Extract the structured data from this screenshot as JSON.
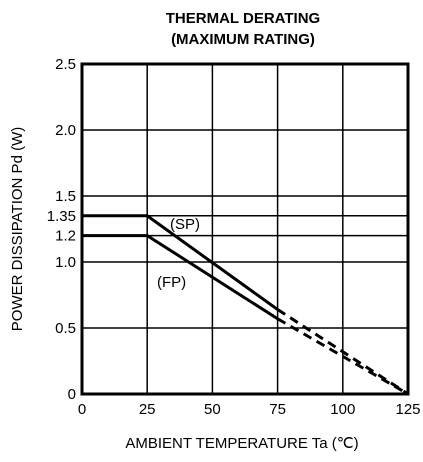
{
  "chart_data": {
    "type": "line",
    "title": "THERMAL DERATING",
    "subtitle": "(MAXIMUM RATING)",
    "xlabel": "AMBIENT TEMPERATURE Ta (℃)",
    "ylabel": "POWER DISSIPATION Pd (W)",
    "xlim": [
      0,
      125
    ],
    "ylim": [
      0,
      2.5
    ],
    "grid": true,
    "x_ticks": [
      "0",
      "25",
      "50",
      "75",
      "100",
      "125"
    ],
    "y_ticks": [
      "0",
      "0.5",
      "1.0",
      "1.2",
      "1.35",
      "1.5",
      "2.0",
      "2.5"
    ],
    "series": [
      {
        "name": "(SP)",
        "solid": [
          [
            0,
            1.35
          ],
          [
            25,
            1.35
          ],
          [
            75,
            0.64
          ]
        ],
        "dashed": [
          [
            75,
            0.64
          ],
          [
            125,
            0
          ]
        ]
      },
      {
        "name": "(FP)",
        "solid": [
          [
            0,
            1.2
          ],
          [
            25,
            1.2
          ],
          [
            75,
            0.57
          ]
        ],
        "dashed": [
          [
            75,
            0.57
          ],
          [
            125,
            0
          ]
        ]
      }
    ]
  }
}
